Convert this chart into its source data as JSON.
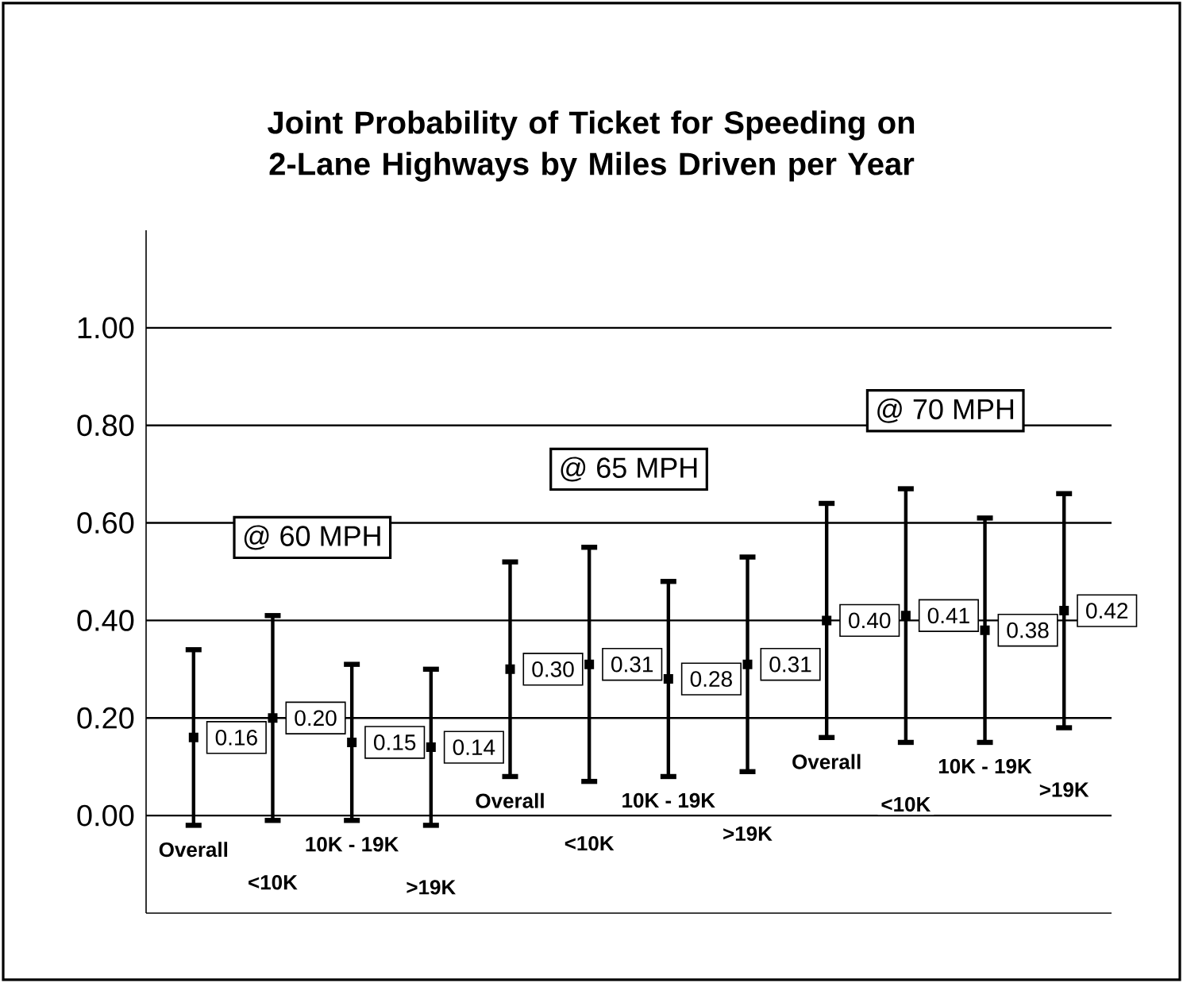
{
  "chart_data": {
    "type": "scatter",
    "title": "Joint Probability of Ticket for Speeding on 2-Lane Highways by Miles Driven per Year",
    "categories": [
      "Overall",
      "<10K",
      "10K - 19K",
      ">19K",
      "Overall",
      "<10K",
      "10K - 19K",
      ">19K",
      "Overall",
      "<10K",
      "10K - 19K",
      ">19K"
    ],
    "values": [
      0.16,
      0.2,
      0.15,
      0.14,
      0.3,
      0.31,
      0.28,
      0.31,
      0.4,
      0.41,
      0.38,
      0.42
    ],
    "value_labels": [
      "0.16",
      "0.20",
      "0.15",
      "0.14",
      "0.30",
      "0.31",
      "0.28",
      "0.31",
      "0.40",
      "0.41",
      "0.38",
      "0.42"
    ],
    "errors": [
      [
        -0.02,
        0.34
      ],
      [
        -0.01,
        0.41
      ],
      [
        -0.01,
        0.31
      ],
      [
        -0.02,
        0.3
      ],
      [
        0.08,
        0.52
      ],
      [
        0.07,
        0.55
      ],
      [
        0.08,
        0.48
      ],
      [
        0.09,
        0.53
      ],
      [
        0.16,
        0.64
      ],
      [
        0.15,
        0.67
      ],
      [
        0.15,
        0.61
      ],
      [
        0.18,
        0.66
      ]
    ],
    "color": "#000000",
    "marker": "square",
    "ylim": [
      -0.2,
      1.2
    ],
    "yticks": [
      {
        "value": 0,
        "label": "0.00"
      },
      {
        "value": 0.2,
        "label": "0.20"
      },
      {
        "value": 0.4,
        "label": "0.40"
      },
      {
        "value": 0.6,
        "label": "0.60"
      },
      {
        "value": 0.8,
        "label": "0.80"
      },
      {
        "value": 1,
        "label": "1.00"
      }
    ],
    "grid": "y",
    "annotations": [
      "@ 60 MPH",
      "@ 65 MPH",
      "@ 70 MPH"
    ]
  }
}
